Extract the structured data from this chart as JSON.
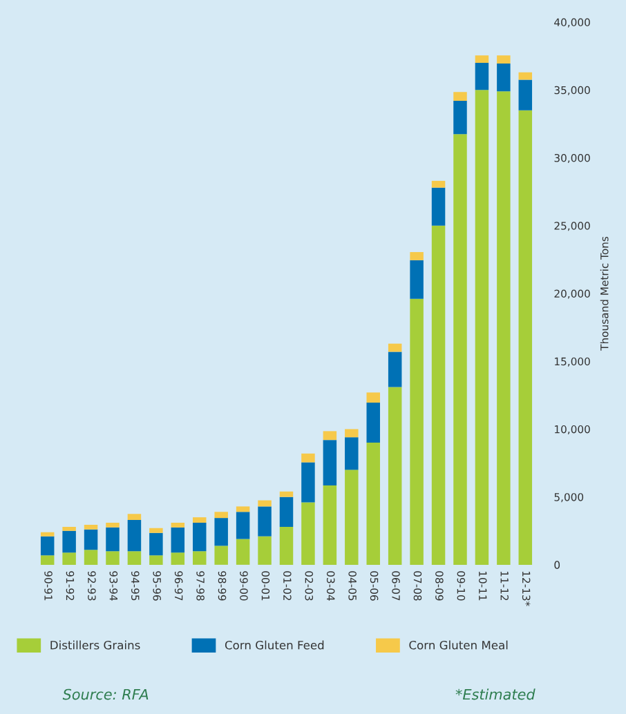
{
  "chart_data": {
    "type": "bar",
    "stacked": true,
    "ylabel": "Thousand Metric Tons",
    "categories": [
      "90-91",
      "91-92",
      "92-93",
      "93-94",
      "94-95",
      "95-96",
      "96-97",
      "97-98",
      "98-99",
      "99-00",
      "00-01",
      "01-02",
      "02-03",
      "03-04",
      "04-05",
      "05-06",
      "06-07",
      "07-08",
      "08-09",
      "09-10",
      "10-11",
      "11-12",
      "12-13*"
    ],
    "series": [
      {
        "name": "Distillers Grains",
        "color": "#a6ce39",
        "values": [
          700,
          900,
          1100,
          1000,
          1000,
          700,
          900,
          1000,
          1400,
          1900,
          2100,
          2800,
          4600,
          5850,
          7000,
          9000,
          13100,
          19600,
          25000,
          31750,
          35000,
          34900,
          33500
        ]
      },
      {
        "name": "Corn Gluten Feed",
        "color": "#0071b5",
        "values": [
          1400,
          1600,
          1500,
          1750,
          2300,
          1650,
          1850,
          2100,
          2050,
          2000,
          2200,
          2200,
          2950,
          3350,
          2400,
          2950,
          2600,
          2850,
          2800,
          2450,
          2000,
          2050,
          2250
        ]
      },
      {
        "name": "Corn Gluten Meal",
        "color": "#f6c94a",
        "values": [
          300,
          300,
          350,
          350,
          450,
          350,
          350,
          400,
          450,
          400,
          450,
          400,
          650,
          650,
          600,
          750,
          600,
          600,
          500,
          650,
          550,
          600,
          550
        ]
      }
    ],
    "ylim": [
      0,
      40000
    ],
    "yticks": [
      {
        "value": 0,
        "label": "0"
      },
      {
        "value": 5000,
        "label": "5,000"
      },
      {
        "value": 10000,
        "label": "10,000"
      },
      {
        "value": 15000,
        "label": "15,000"
      },
      {
        "value": 20000,
        "label": "20,000"
      },
      {
        "value": 25000,
        "label": "25,000"
      },
      {
        "value": 30000,
        "label": "30,000"
      },
      {
        "value": 35000,
        "label": "35,000"
      },
      {
        "value": 40000,
        "label": "40,000"
      }
    ],
    "grid": false,
    "legend": "bottom",
    "annotations": [
      "Source: RFA",
      "*Estimated"
    ]
  }
}
